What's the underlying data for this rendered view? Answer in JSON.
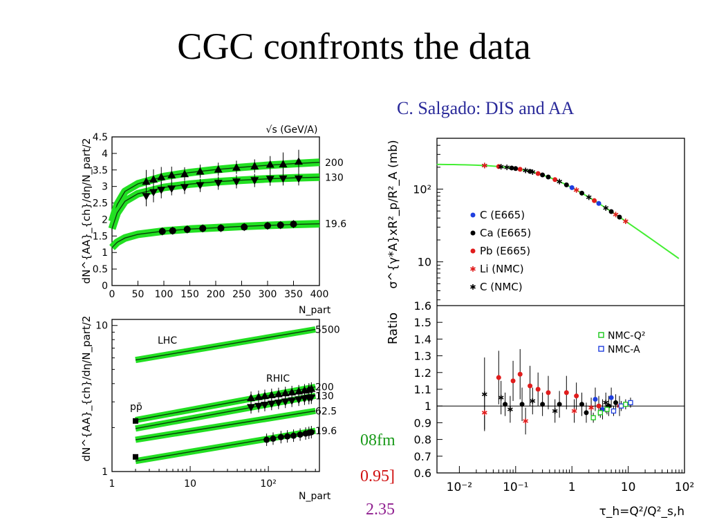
{
  "title": "CGC confronts the data",
  "credit": "C. Salgado: DIS and AA",
  "side_texts": [
    "08fm",
    "0.95]",
    "2.35"
  ],
  "colors": {
    "band": "#22e022",
    "green_line": "#44ee33",
    "accent_text": "#2a2a9a"
  },
  "chart_data": [
    {
      "id": "top-left",
      "type": "line",
      "xlabel": "N_part",
      "ylabel": "dN^{AA}_{ch}/dη/N_part/2",
      "header_label": "√s (GeV/A)",
      "xlim": [
        0,
        400
      ],
      "ylim": [
        0,
        4.5
      ],
      "xticks": [
        0,
        50,
        100,
        150,
        200,
        250,
        300,
        350,
        400
      ],
      "yticks": [
        0,
        0.5,
        1,
        1.5,
        2,
        2.5,
        3,
        3.5,
        4,
        4.5
      ],
      "series": [
        {
          "name": "200",
          "marker": "triangle-up",
          "curve": [
            [
              0,
              1.94
            ],
            [
              10,
              2.45
            ],
            [
              25,
              2.85
            ],
            [
              50,
              3.08
            ],
            [
              100,
              3.3
            ],
            [
              150,
              3.42
            ],
            [
              200,
              3.51
            ],
            [
              250,
              3.58
            ],
            [
              300,
              3.64
            ],
            [
              350,
              3.69
            ],
            [
              400,
              3.73
            ]
          ],
          "points": [
            [
              66,
              3.15,
              0.35
            ],
            [
              80,
              3.22,
              0.3
            ],
            [
              95,
              3.29,
              0.3
            ],
            [
              115,
              3.35,
              0.25
            ],
            [
              140,
              3.38,
              0.2
            ],
            [
              170,
              3.46,
              0.2
            ],
            [
              205,
              3.52,
              0.2
            ],
            [
              240,
              3.58,
              0.2
            ],
            [
              275,
              3.62,
              0.2
            ],
            [
              305,
              3.67,
              0.25
            ],
            [
              330,
              3.68,
              0.35
            ],
            [
              360,
              3.76,
              0.35
            ]
          ]
        },
        {
          "name": "130",
          "marker": "triangle-down",
          "curve": [
            [
              0,
              1.72
            ],
            [
              10,
              2.2
            ],
            [
              25,
              2.55
            ],
            [
              50,
              2.78
            ],
            [
              100,
              2.97
            ],
            [
              150,
              3.07
            ],
            [
              200,
              3.14
            ],
            [
              250,
              3.19
            ],
            [
              300,
              3.23
            ],
            [
              350,
              3.26
            ],
            [
              400,
              3.28
            ]
          ],
          "points": [
            [
              66,
              2.7,
              0.3
            ],
            [
              80,
              2.82,
              0.3
            ],
            [
              95,
              2.89,
              0.25
            ],
            [
              115,
              2.93,
              0.2
            ],
            [
              140,
              2.97,
              0.2
            ],
            [
              170,
              3.03,
              0.2
            ],
            [
              205,
              3.1,
              0.2
            ],
            [
              240,
              3.14,
              0.2
            ],
            [
              275,
              3.18,
              0.2
            ],
            [
              305,
              3.22,
              0.2
            ],
            [
              330,
              3.23,
              0.2
            ],
            [
              360,
              3.23,
              0.2
            ]
          ]
        },
        {
          "name": "19.6",
          "marker": "circle",
          "curve": [
            [
              0,
              1.15
            ],
            [
              10,
              1.31
            ],
            [
              25,
              1.44
            ],
            [
              50,
              1.55
            ],
            [
              100,
              1.65
            ],
            [
              150,
              1.71
            ],
            [
              200,
              1.75
            ],
            [
              250,
              1.79
            ],
            [
              300,
              1.82
            ],
            [
              350,
              1.85
            ],
            [
              400,
              1.87
            ]
          ],
          "points": [
            [
              97,
              1.64,
              0.12
            ],
            [
              117,
              1.66,
              0.12
            ],
            [
              145,
              1.7,
              0.12
            ],
            [
              175,
              1.73,
              0.12
            ],
            [
              210,
              1.74,
              0.12
            ],
            [
              255,
              1.77,
              0.12
            ],
            [
              300,
              1.81,
              0.12
            ],
            [
              325,
              1.83,
              0.12
            ],
            [
              350,
              1.86,
              0.12
            ]
          ]
        }
      ]
    },
    {
      "id": "bottom-left",
      "type": "line",
      "xlabel": "N_part",
      "ylabel": "dN^{AA}_{ch}/dη/N_part/2",
      "xscale": "log",
      "yscale": "log",
      "xlim": [
        1,
        450
      ],
      "ylim": [
        1,
        11
      ],
      "xtick_labels": [
        "1",
        "10",
        "10²"
      ],
      "ytick_labels": [
        "1",
        "10"
      ],
      "labels": [
        "LHC",
        "RHIC",
        "pp̄"
      ],
      "series": [
        {
          "name": "5500",
          "line": [
            [
              2,
              5.8
            ],
            [
              400,
              9.4
            ]
          ]
        },
        {
          "name": "200",
          "line": [
            [
              2,
              2.25
            ],
            [
              400,
              3.8
            ]
          ],
          "points": [
            [
              60,
              3.2
            ],
            [
              75,
              3.25
            ],
            [
              90,
              3.3
            ],
            [
              110,
              3.35
            ],
            [
              135,
              3.4
            ],
            [
              165,
              3.45
            ],
            [
              200,
              3.5
            ],
            [
              245,
              3.55
            ],
            [
              290,
              3.6
            ],
            [
              330,
              3.65
            ],
            [
              355,
              3.7
            ]
          ]
        },
        {
          "name": "130",
          "line": [
            [
              2,
              1.97
            ],
            [
              400,
              3.3
            ]
          ],
          "points": [
            [
              60,
              2.75
            ],
            [
              75,
              2.8
            ],
            [
              90,
              2.85
            ],
            [
              110,
              2.9
            ],
            [
              135,
              2.95
            ],
            [
              165,
              3.0
            ],
            [
              200,
              3.05
            ],
            [
              245,
              3.1
            ],
            [
              290,
              3.15
            ],
            [
              330,
              3.18
            ],
            [
              355,
              3.2
            ]
          ]
        },
        {
          "name": "62.5",
          "line": [
            [
              2,
              1.65
            ],
            [
              400,
              2.6
            ]
          ]
        },
        {
          "name": "19.6",
          "line": [
            [
              2,
              1.18
            ],
            [
              400,
              1.9
            ]
          ],
          "points": [
            [
              95,
              1.65
            ],
            [
              115,
              1.68
            ],
            [
              145,
              1.72
            ],
            [
              175,
              1.74
            ],
            [
              210,
              1.76
            ],
            [
              255,
              1.79
            ],
            [
              300,
              1.82
            ],
            [
              330,
              1.84
            ],
            [
              355,
              1.86
            ]
          ]
        },
        {
          "name": "pp̄",
          "points": [
            [
              2,
              2.22
            ],
            [
              2,
              1.26
            ]
          ]
        }
      ]
    },
    {
      "id": "right-top",
      "type": "scatter",
      "ylabel": "σ^{γ*A}xR²_p/R²_A (mb)",
      "yscale": "log",
      "ylim": [
        2.5,
        500
      ],
      "ytick_labels": [
        "10",
        "10²"
      ],
      "legend": [
        {
          "label": "C (E665)",
          "marker": "dot",
          "color": "#1f3fdf"
        },
        {
          "label": "Ca (E665)",
          "marker": "dot",
          "color": "#000000"
        },
        {
          "label": "Pb (E665)",
          "marker": "dot",
          "color": "#e01c1c"
        },
        {
          "label": "Li (NMC)",
          "marker": "star",
          "color": "#e01c1c"
        },
        {
          "label": "C (NMC)",
          "marker": "star",
          "color": "#000000"
        }
      ]
    },
    {
      "id": "right-bottom",
      "type": "scatter",
      "xlabel": "τ_h=Q²/Q²_s,h",
      "ylabel": "Ratio",
      "xscale": "log",
      "xlim": [
        0.004,
        100
      ],
      "ylim": [
        0.6,
        1.6
      ],
      "xtick_labels": [
        "10⁻²",
        "10⁻¹",
        "1",
        "10",
        "10²"
      ],
      "yticks": [
        0.6,
        0.7,
        0.8,
        0.9,
        1,
        1.1,
        1.2,
        1.3,
        1.4,
        1.5,
        1.6
      ],
      "legend": [
        {
          "label": "NMC-Q²",
          "marker": "open-square",
          "color": "#18c818"
        },
        {
          "label": "NMC-A",
          "marker": "open-square",
          "color": "#1f3fdf"
        }
      ]
    }
  ]
}
